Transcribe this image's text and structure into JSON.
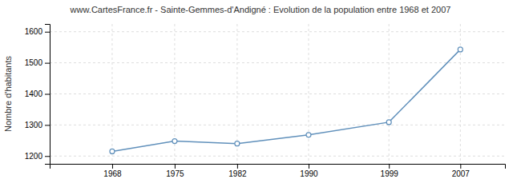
{
  "chart_data": {
    "type": "line",
    "title": "www.CartesFrance.fr - Sainte-Gemmes-d'Andigné : Evolution de la population entre 1968 et 2007",
    "ylabel": "Nombre d'habitants",
    "x": [
      1968,
      1975,
      1982,
      1990,
      1999,
      2007
    ],
    "values": [
      1215,
      1248,
      1240,
      1268,
      1309,
      1543
    ],
    "color": "#6090bb",
    "marker": "circle",
    "xlim": [
      1961,
      2012
    ],
    "xticks": [
      1968,
      1975,
      1982,
      1990,
      1999,
      2007
    ],
    "ylim": [
      1175,
      1625
    ],
    "yticks": [
      1200,
      1300,
      1400,
      1500,
      1600
    ],
    "grid": true
  }
}
